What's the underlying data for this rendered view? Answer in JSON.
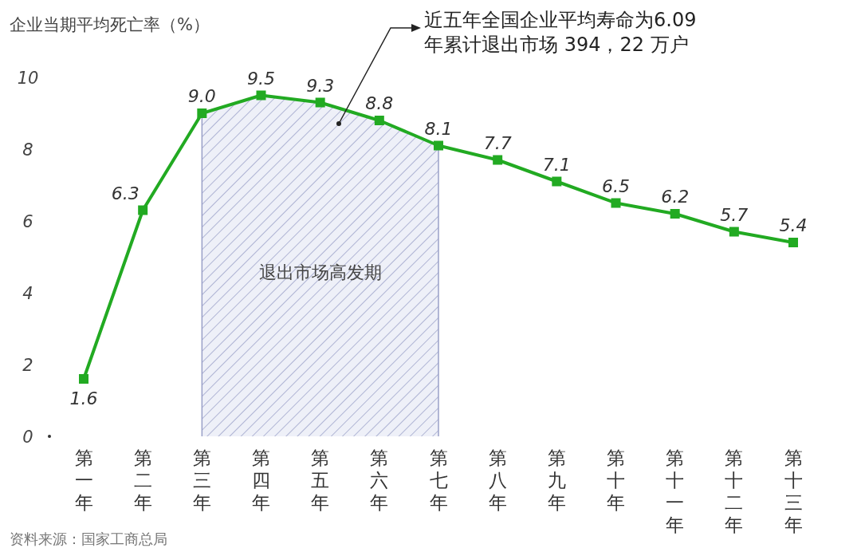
{
  "chart_data": {
    "type": "line",
    "ylabel": "企业当期平均死亡率（%）",
    "categories": [
      "第一年",
      "第二年",
      "第三年",
      "第四年",
      "第五年",
      "第六年",
      "第七年",
      "第八年",
      "第九年",
      "第十年",
      "第十一年",
      "第十二年",
      "第十三年"
    ],
    "values": [
      1.6,
      6.3,
      9.0,
      9.5,
      9.3,
      8.8,
      8.1,
      7.7,
      7.1,
      6.5,
      6.2,
      5.7,
      5.4
    ],
    "color": "#22aa22",
    "marker": "square",
    "value_labels": [
      "1.6",
      "6.3",
      "9.0",
      "9.5",
      "9.3",
      "8.8",
      "8.1",
      "7.7",
      "7.1",
      "6.5",
      "6.2",
      "5.7",
      "5.4"
    ],
    "ylim": [
      0,
      10
    ],
    "yticks": [
      0,
      2,
      4,
      6,
      8,
      10
    ],
    "bands": [
      {
        "axis": "x",
        "from": "第三年",
        "to": "第七年",
        "label": "退出市场高发期",
        "color": "#9aa0c8"
      }
    ],
    "annotations": [
      "近五年全国企业平均寿命为6.09年累计退出市场 394，22 万户",
      "资料来源：国家工商总局"
    ]
  }
}
